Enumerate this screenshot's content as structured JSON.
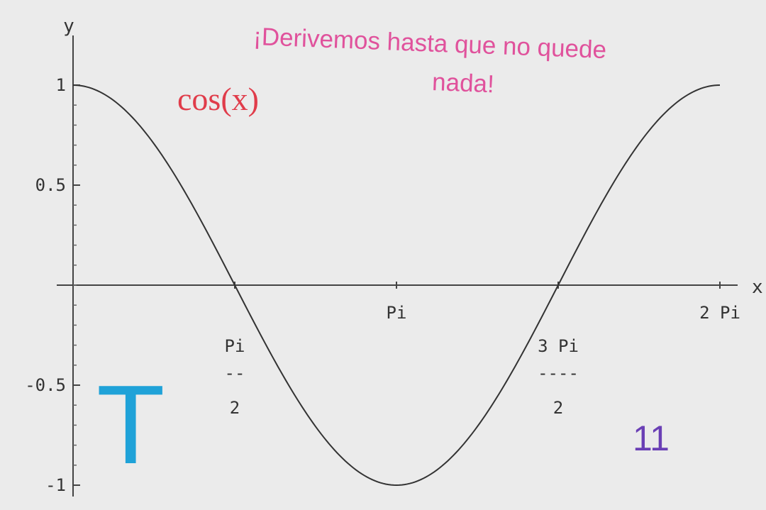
{
  "chart_data": {
    "type": "line",
    "title": "cos(x)",
    "title_color": "#e03c4a",
    "xlabel": "x",
    "ylabel": "y",
    "xlim": [
      0,
      6.2832
    ],
    "ylim": [
      -1,
      1
    ],
    "function": "cos(x)",
    "line_color": "#333333",
    "grid": false,
    "x_ticks": [
      {
        "value": 1.5708,
        "label_top": "Pi",
        "label_bar": "--",
        "label_bottom": "2"
      },
      {
        "value": 3.1416,
        "label": "Pi"
      },
      {
        "value": 4.7124,
        "label_top": "3 Pi",
        "label_bar": "----",
        "label_bottom": "2"
      },
      {
        "value": 6.2832,
        "label": "2 Pi"
      }
    ],
    "y_ticks": [
      {
        "value": 1,
        "label": "1"
      },
      {
        "value": 0.5,
        "label": "0.5"
      },
      {
        "value": -0.5,
        "label": "-0.5"
      },
      {
        "value": -1,
        "label": "-1"
      }
    ],
    "series": [
      {
        "x": [
          0,
          0.3927,
          0.7854,
          1.1781,
          1.5708,
          1.9635,
          2.3562,
          2.7489,
          3.1416,
          3.5343,
          3.927,
          4.3197,
          4.7124,
          5.1051,
          5.4978,
          5.8905,
          6.2832
        ],
        "values": [
          1,
          0.9239,
          0.7071,
          0.3827,
          0,
          -0.3827,
          -0.7071,
          -0.9239,
          -1,
          -0.9239,
          -0.7071,
          -0.3827,
          0,
          0.3827,
          0.7071,
          0.9239,
          1
        ]
      }
    ]
  },
  "annotations": {
    "caption_line1": "¡Derivemos hasta que no quede",
    "caption_line2": "nada!",
    "caption_color": "#e0529c",
    "sticker_letter": "T",
    "sticker_letter_color": "#1fa2d8",
    "sticker_number": "11",
    "sticker_number_color": "#6a3fb5"
  }
}
